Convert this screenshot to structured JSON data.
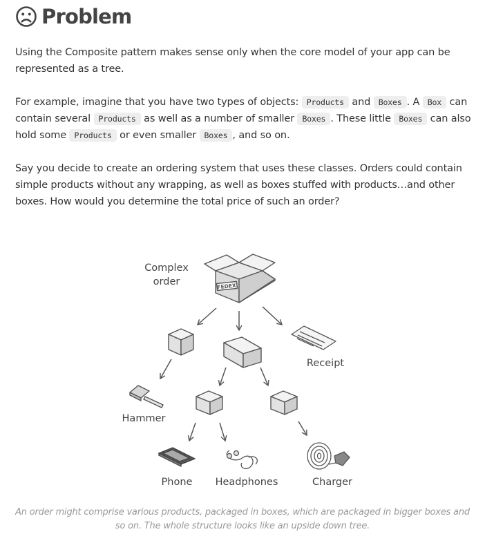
{
  "heading": {
    "icon": "sad-face-icon",
    "title": "Problem"
  },
  "para1": "Using the Composite pattern makes sense only when the core model of your app can be represented as a tree.",
  "para2": {
    "t1": "For example, imagine that you have two types of objects: ",
    "c1": "Products",
    "t2": " and ",
    "c2": "Boxes",
    "t3": ". A ",
    "c3": "Box",
    "t4": " can contain several ",
    "c4": "Products",
    "t5": " as well as a number of smaller ",
    "c5": "Boxes",
    "t6": ". These little ",
    "c6": "Boxes",
    "t7": " can also hold some ",
    "c7": "Products",
    "t8": " or even smaller ",
    "c8": "Boxes",
    "t9": ", and so on."
  },
  "para3": "Say you decide to create an ordering system that uses these classes. Orders could contain simple products without any wrapping, as well as boxes stuffed with products…and other boxes. How would you determine the total price of such an order?",
  "figure": {
    "labels": {
      "complex_order_1": "Complex",
      "complex_order_2": "order",
      "stamp": "FEDEX",
      "receipt": "Receipt",
      "hammer": "Hammer",
      "phone": "Phone",
      "headphones": "Headphones",
      "charger": "Charger"
    }
  },
  "caption": "An order might comprise various products, packaged in boxes, which are packaged in bigger boxes and so on. The whole structure looks like an upside down tree."
}
